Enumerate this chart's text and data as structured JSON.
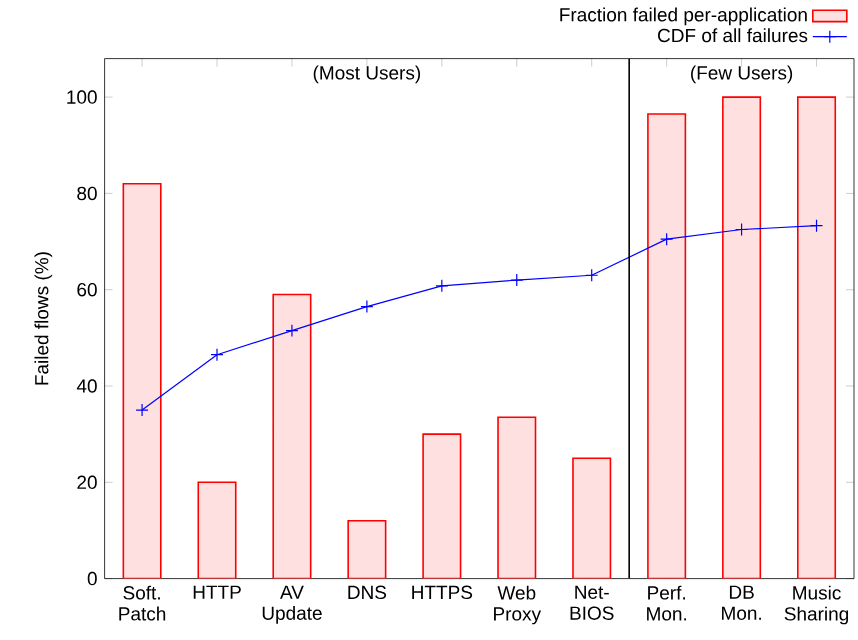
{
  "chart_data": {
    "type": "bar",
    "ylabel": "Failed flows (%)",
    "categories": [
      "Soft. Patch",
      "HTTP",
      "AV Update",
      "DNS",
      "HTTPS",
      "Web Proxy",
      "Net-BIOS",
      "Perf. Mon.",
      "DB Mon.",
      "Music Sharing"
    ],
    "series": [
      {
        "name": "Fraction failed per-application",
        "color": "#ffe0e0",
        "values": [
          82,
          20,
          59,
          12,
          30,
          33.5,
          25,
          96.5,
          100,
          100
        ]
      },
      {
        "name": "CDF of all failures",
        "type": "line",
        "color": "#0000ff",
        "marker": "cross",
        "values": [
          35,
          46.5,
          51.5,
          56.5,
          60.8,
          62,
          63,
          70.5,
          72.5,
          73.3
        ]
      }
    ],
    "ylim": [
      0,
      108
    ],
    "yticks": [
      0,
      20,
      40,
      60,
      80,
      100
    ],
    "annotations": [
      "(Most Users)",
      "(Few Users)"
    ],
    "legend": "top right",
    "grid": false
  }
}
